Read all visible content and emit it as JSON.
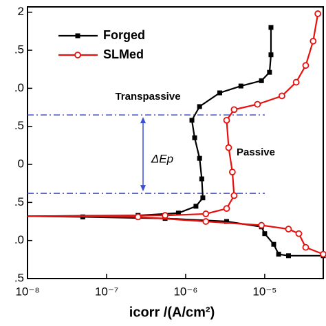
{
  "chart_data": {
    "type": "line",
    "xlabel": "icorr /(A/cm²)",
    "xscale": "log",
    "xlim": [
      1e-08,
      5.5e-05
    ],
    "xticks": [
      {
        "value": 1e-08,
        "label": "10⁻⁸"
      },
      {
        "value": 1e-07,
        "label": "10⁻⁷"
      },
      {
        "value": 1e-06,
        "label": "10⁻⁶"
      },
      {
        "value": 1e-05,
        "label": "10⁻⁵"
      }
    ],
    "ylim": [
      -1.5,
      2.07
    ],
    "yticks": [
      2.0,
      {
        "value": 1.5,
        "label": ".5"
      },
      {
        "value": 1.0,
        "label": ".0"
      },
      {
        "value": 0.5,
        "label": ".5"
      },
      0.0,
      {
        "value": -0.5,
        "label": ".5"
      },
      {
        "value": -1.0,
        "label": ".0"
      },
      {
        "value": -1.5,
        "label": ".5"
      }
    ],
    "legend": "top-left",
    "series": [
      {
        "name": "Forged",
        "color": "#000000",
        "marker": "square",
        "x": [
          5.5e-05,
          2e-05,
          1.5e-05,
          1.3e-05,
          1e-05,
          9.1e-06,
          3.3e-06,
          5.5e-07,
          5e-08,
          1e-08,
          2.5e-07,
          8.1e-07,
          1.35e-06,
          1.65e-06,
          1.6e-06,
          1.5e-06,
          1.3e-06,
          1.2e-06,
          1.5e-06,
          2.7e-06,
          5e-06,
          9.1e-06,
          1.15e-05,
          1.2e-05,
          1.2e-05
        ],
        "values": [
          -1.2,
          -1.2,
          -1.18,
          -1.05,
          -0.91,
          -0.82,
          -0.75,
          -0.71,
          -0.69,
          -0.68,
          -0.67,
          -0.64,
          -0.55,
          -0.44,
          -0.19,
          0.08,
          0.35,
          0.58,
          0.76,
          0.94,
          1.03,
          1.1,
          1.21,
          1.44,
          1.8
        ]
      },
      {
        "name": "SLMed",
        "color": "#e8100c",
        "marker": "circle",
        "x": [
          5.5e-05,
          3.3e-05,
          2.7e-05,
          2e-05,
          9.1e-06,
          1.8e-06,
          2.5e-07,
          1e-08,
          5.5e-07,
          1.8e-06,
          3.3e-06,
          4.1e-06,
          3.9e-06,
          3.5e-06,
          3.3e-06,
          4.1e-06,
          8.1e-06,
          1.65e-05,
          2.5e-05,
          3.3e-05,
          4.1e-05,
          4.7e-05
        ],
        "values": [
          -1.18,
          -1.09,
          -0.91,
          -0.85,
          -0.8,
          -0.75,
          -0.69,
          -0.68,
          -0.67,
          -0.65,
          -0.58,
          -0.41,
          -0.1,
          0.22,
          0.58,
          0.72,
          0.79,
          0.9,
          1.08,
          1.3,
          1.62,
          1.98
        ]
      }
    ],
    "hlines": [
      0.65,
      -0.38
    ],
    "hline_color": "#3a4fd6",
    "annotations": [
      "Transpassive",
      "Passive",
      "ΔEp"
    ]
  }
}
